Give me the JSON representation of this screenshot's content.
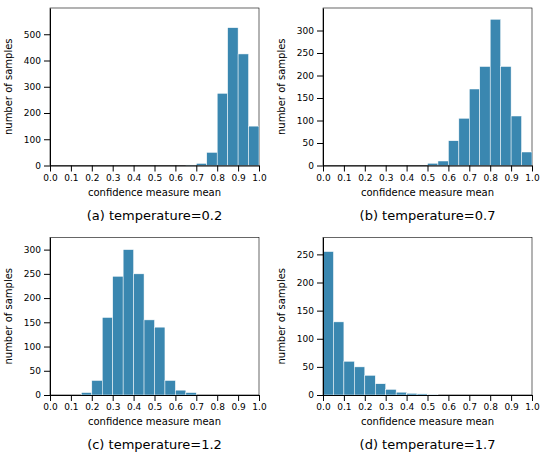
{
  "chart_data": [
    {
      "type": "histogram",
      "title": "(a) temperature=0.2",
      "xlabel": "confidence measure mean",
      "ylabel": "number of samples",
      "color": "#3a87b0",
      "bins": [
        0.0,
        0.05,
        0.1,
        0.15,
        0.2,
        0.25,
        0.3,
        0.35,
        0.4,
        0.45,
        0.5,
        0.55,
        0.6,
        0.65,
        0.7,
        0.75,
        0.8,
        0.85,
        0.9,
        0.95,
        1.0
      ],
      "values": [
        0,
        0,
        0,
        0,
        0,
        0,
        0,
        0,
        0,
        0,
        0,
        0,
        0,
        2,
        8,
        50,
        275,
        525,
        425,
        150
      ],
      "xlim": [
        0.0,
        1.0
      ],
      "xticks": [
        {
          "value": 0.0,
          "label": "0.0"
        },
        0.1,
        0.2,
        0.3,
        0.4,
        0.5,
        0.6,
        0.7,
        0.8,
        0.9,
        {
          "value": 1.0,
          "label": "1.0"
        }
      ],
      "ylim": [
        0,
        600
      ],
      "yticks": [
        0,
        100,
        200,
        300,
        400,
        500
      ]
    },
    {
      "type": "histogram",
      "title": "(b) temperature=0.7",
      "xlabel": "confidence measure mean",
      "ylabel": "number of samples",
      "color": "#3a87b0",
      "bins": [
        0.0,
        0.05,
        0.1,
        0.15,
        0.2,
        0.25,
        0.3,
        0.35,
        0.4,
        0.45,
        0.5,
        0.55,
        0.6,
        0.65,
        0.7,
        0.75,
        0.8,
        0.85,
        0.9,
        0.95,
        1.0
      ],
      "values": [
        0,
        0,
        0,
        0,
        0,
        0,
        0,
        0,
        0,
        0,
        5,
        10,
        55,
        105,
        170,
        220,
        325,
        220,
        110,
        30
      ],
      "xlim": [
        0.0,
        1.0
      ],
      "xticks": [
        {
          "value": 0.0,
          "label": "0.0"
        },
        0.1,
        0.2,
        0.3,
        0.4,
        0.5,
        0.6,
        0.7,
        0.8,
        0.9,
        {
          "value": 1.0,
          "label": "1.0"
        }
      ],
      "ylim": [
        0,
        350
      ],
      "yticks": [
        0,
        50,
        100,
        150,
        200,
        250,
        300
      ]
    },
    {
      "type": "histogram",
      "title": "(c) temperature=1.2",
      "xlabel": "confidence measure mean",
      "ylabel": "number of samples",
      "color": "#3a87b0",
      "bins": [
        0.0,
        0.05,
        0.1,
        0.15,
        0.2,
        0.25,
        0.3,
        0.35,
        0.4,
        0.45,
        0.5,
        0.55,
        0.6,
        0.65,
        0.7,
        0.75,
        0.8,
        0.85,
        0.9,
        0.95,
        1.0
      ],
      "values": [
        0,
        0,
        0,
        5,
        30,
        160,
        245,
        300,
        250,
        155,
        140,
        30,
        10,
        5,
        0,
        0,
        0,
        0,
        0,
        0
      ],
      "xlim": [
        0.0,
        1.0
      ],
      "xticks": [
        {
          "value": 0.0,
          "label": "0.0"
        },
        0.1,
        0.2,
        0.3,
        0.4,
        0.5,
        0.6,
        0.7,
        0.8,
        0.9,
        {
          "value": 1.0,
          "label": "1.0"
        }
      ],
      "ylim": [
        0,
        325
      ],
      "yticks": [
        0,
        50,
        100,
        150,
        200,
        250,
        300
      ]
    },
    {
      "type": "histogram",
      "title": "(d) temperature=1.7",
      "xlabel": "confidence measure mean",
      "ylabel": "number of samples",
      "color": "#3a87b0",
      "bins": [
        0.0,
        0.05,
        0.1,
        0.15,
        0.2,
        0.25,
        0.3,
        0.35,
        0.4,
        0.45,
        0.5,
        0.55,
        0.6,
        0.65,
        0.7,
        0.75,
        0.8,
        0.85,
        0.9,
        0.95,
        1.0
      ],
      "values": [
        255,
        130,
        60,
        50,
        35,
        20,
        10,
        5,
        3,
        2,
        1,
        0,
        0,
        0,
        0,
        0,
        0,
        0,
        0,
        0
      ],
      "xlim": [
        0.0,
        1.0
      ],
      "xticks": [
        {
          "value": 0.0,
          "label": "0.0"
        },
        0.1,
        0.2,
        0.3,
        0.4,
        0.5,
        0.6,
        0.7,
        0.8,
        0.9,
        {
          "value": 1.0,
          "label": "1.0"
        }
      ],
      "ylim": [
        0,
        280
      ],
      "yticks": [
        0,
        50,
        100,
        150,
        200,
        250
      ]
    }
  ]
}
